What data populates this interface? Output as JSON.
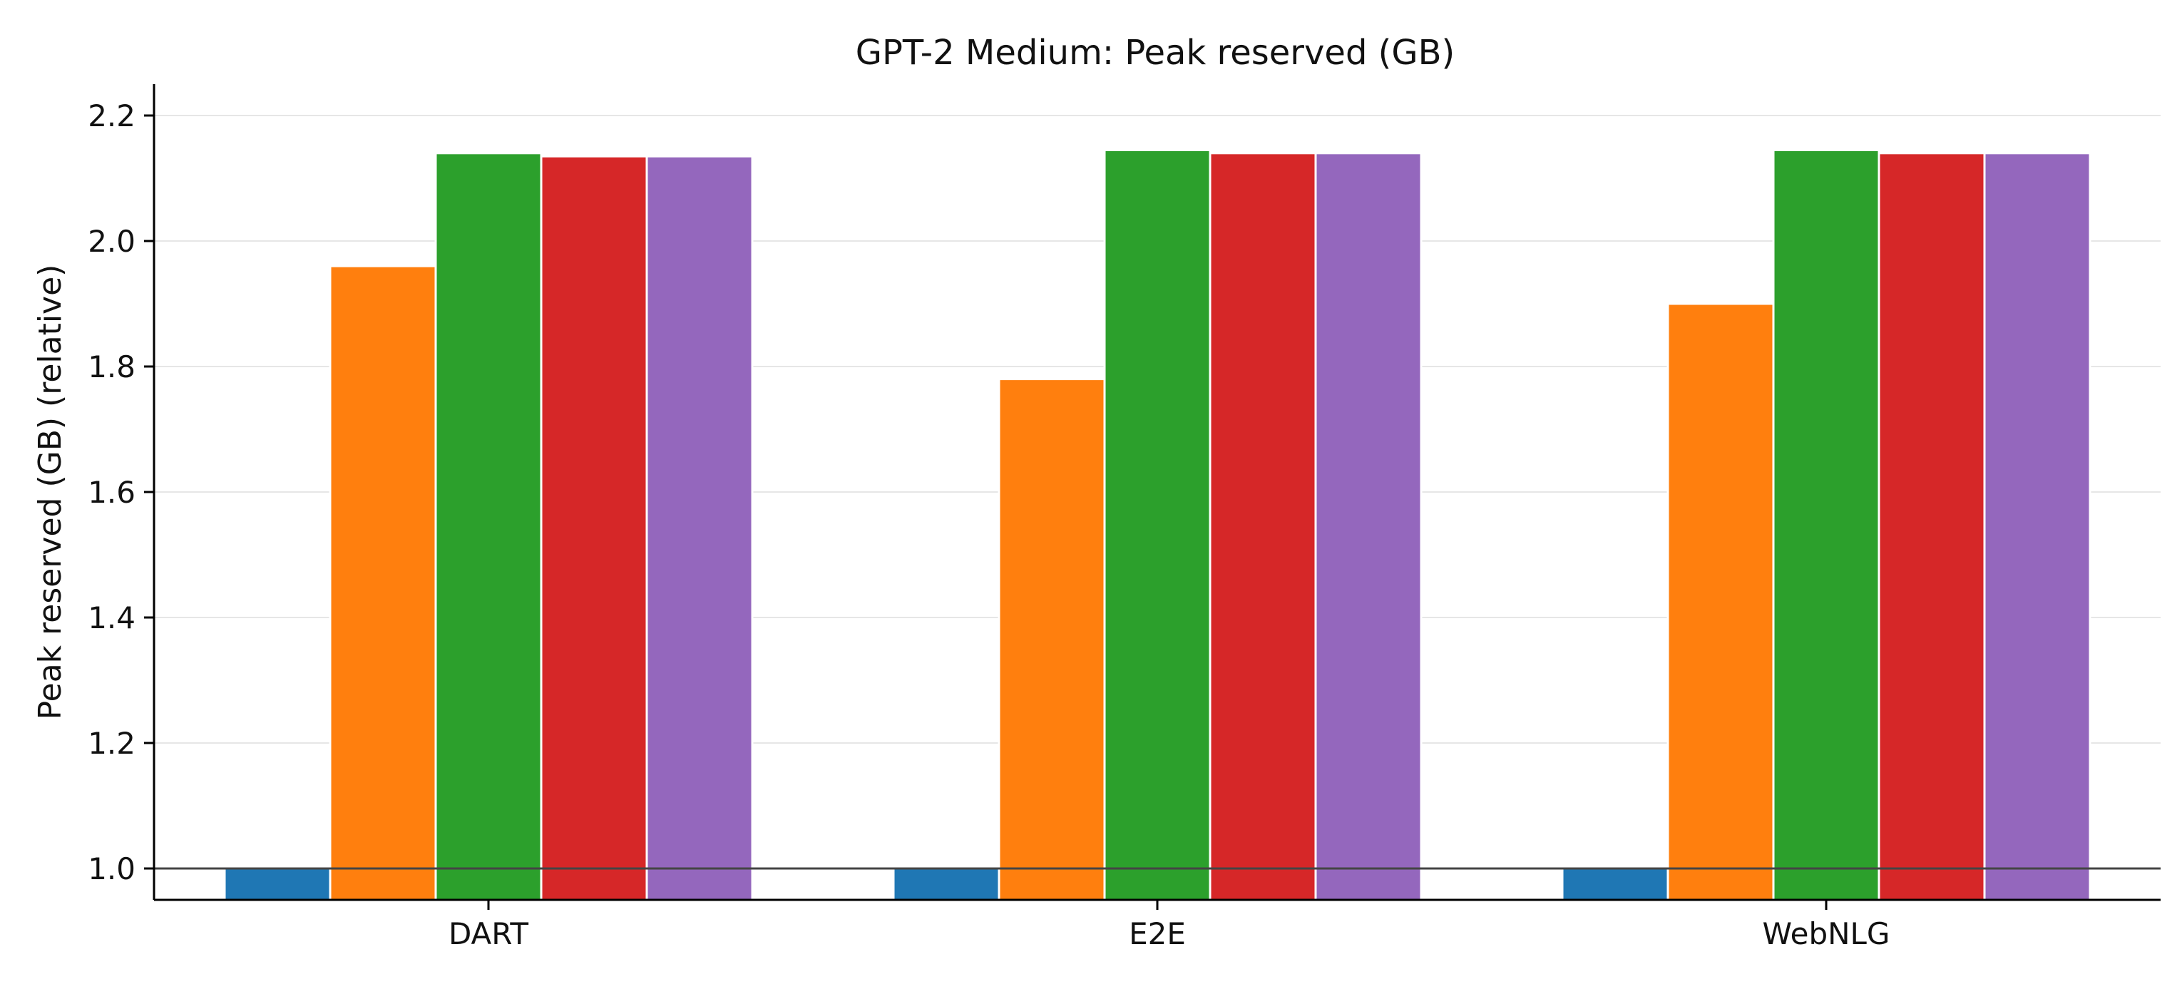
{
  "chart_data": {
    "type": "bar",
    "title": "GPT-2 Medium: Peak reserved (GB)",
    "xlabel": "",
    "ylabel": "Peak reserved (GB) (relative)",
    "categories": [
      "DART",
      "E2E",
      "WebNLG"
    ],
    "series": [
      {
        "color": "#1f77b4",
        "values": [
          1.0,
          1.0,
          1.0
        ]
      },
      {
        "color": "#ff7f0e",
        "values": [
          1.96,
          1.78,
          1.9
        ]
      },
      {
        "color": "#2ca02c",
        "values": [
          2.14,
          2.145,
          2.145
        ]
      },
      {
        "color": "#d62728",
        "values": [
          2.135,
          2.14,
          2.14
        ]
      },
      {
        "color": "#9467bd",
        "values": [
          2.135,
          2.14,
          2.14
        ]
      }
    ],
    "yticks": [
      1.0,
      1.2,
      1.4,
      1.6,
      1.8,
      2.0,
      2.2
    ],
    "ytick_labels": [
      "1.0",
      "1.2",
      "1.4",
      "1.6",
      "1.8",
      "2.0",
      "2.2"
    ],
    "ylim": [
      0.95,
      2.25
    ],
    "reference_line": 1.0,
    "grid": "horizontal",
    "legend": "none"
  }
}
